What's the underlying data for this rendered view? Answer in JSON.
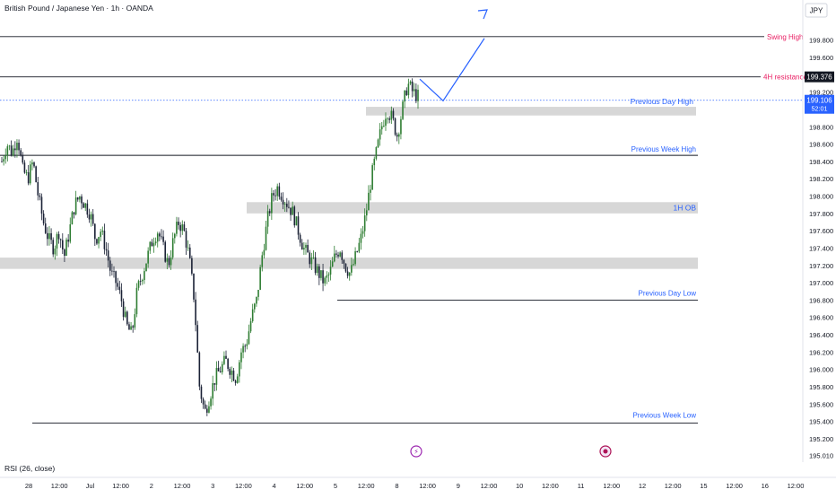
{
  "header": {
    "symbol_title": "British Pound / Japanese Yen · 1h · OANDA"
  },
  "currency": "JPY",
  "price_badges": {
    "resistance_price": "199.376",
    "last_price": "199.106",
    "countdown": "52:01"
  },
  "indicator": {
    "label": "RSI (26, close)"
  },
  "chart_data": {
    "type": "candlestick",
    "title": "British Pound / Japanese Yen · 1h · OANDA",
    "ylim": [
      194.93,
      200.18
    ],
    "y_ticks": [
      "195.010",
      "195.200",
      "195.400",
      "195.600",
      "195.800",
      "196.000",
      "196.200",
      "196.400",
      "196.600",
      "196.800",
      "197.000",
      "197.200",
      "197.400",
      "197.600",
      "197.800",
      "198.000",
      "198.200",
      "198.400",
      "198.600",
      "198.800",
      "199.000",
      "199.200",
      "199.400",
      "199.600",
      "199.800"
    ],
    "x_ticks": [
      "28",
      "12:00",
      "Jul",
      "12:00",
      "2",
      "12:00",
      "3",
      "12:00",
      "4",
      "12:00",
      "5",
      "12:00",
      "8",
      "12:00",
      "9",
      "12:00",
      "10",
      "12:00",
      "11",
      "12:00",
      "12",
      "12:00",
      "15",
      "12:00",
      "16",
      "12:00"
    ],
    "grid": false,
    "price_path": [
      198.4,
      198.6,
      198.5,
      198.7,
      198.3,
      198.2,
      198.4,
      198.0,
      197.7,
      197.5,
      197.4,
      197.6,
      197.3,
      197.6,
      197.9,
      198.0,
      197.9,
      197.8,
      197.5,
      197.6,
      197.4,
      197.1,
      197.0,
      196.8,
      196.5,
      196.4,
      196.9,
      197.1,
      197.3,
      197.5,
      197.6,
      197.4,
      197.2,
      197.5,
      197.7,
      197.6,
      197.3,
      196.8,
      195.8,
      195.5,
      195.7,
      195.9,
      196.0,
      196.1,
      196.0,
      195.9,
      196.2,
      196.3,
      196.6,
      196.8,
      197.3,
      197.7,
      198.0,
      198.1,
      198.0,
      197.9,
      197.8,
      197.6,
      197.4,
      197.3,
      197.2,
      197.1,
      197.0,
      197.1,
      197.3,
      197.4,
      197.2,
      197.1,
      197.3,
      197.5,
      197.8,
      198.2,
      198.5,
      198.8,
      199.0,
      198.9,
      198.7,
      199.0,
      199.3,
      199.2,
      199.15
    ],
    "projection": [
      199.35,
      199.1,
      199.82
    ],
    "zones": [
      {
        "label": "Previous Day High",
        "y0": 198.93,
        "y1": 199.03,
        "color": "#d7d7d7"
      },
      {
        "label": "1H OB",
        "y0": 197.8,
        "y1": 197.93,
        "color": "#d7d7d7"
      },
      {
        "label": "",
        "y0": 197.16,
        "y1": 197.29,
        "color": "#d7d7d7"
      }
    ],
    "levels": [
      {
        "label": "Swing High",
        "price": 199.84,
        "color": "#e91e63"
      },
      {
        "label": "4H resistance",
        "price": 199.376,
        "color": "#e91e63"
      },
      {
        "label": "Previous Week High",
        "price": 198.47,
        "color": "#2962ff"
      },
      {
        "label": "Previous Day Low",
        "price": 196.8,
        "color": "#2962ff"
      },
      {
        "label": "Previous Week  Low",
        "price": 195.38,
        "color": "#2962ff"
      }
    ],
    "last_price_line": 199.106,
    "colors": {
      "up": "#2e7d32",
      "down": "#1b2236",
      "projection": "#2962ff",
      "badge_bg": "#131722",
      "last_badge": "#2962ff"
    }
  }
}
